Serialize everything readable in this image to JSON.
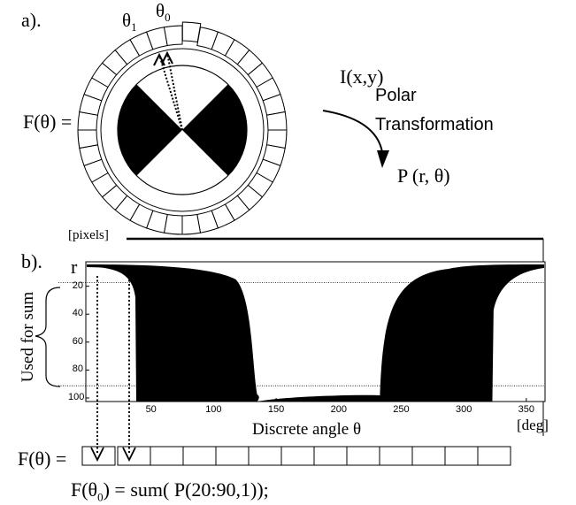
{
  "panel_a": {
    "label": "a).",
    "theta1": "θ",
    "theta1_sub": "1",
    "theta0": "θ",
    "theta0_sub": "0",
    "f_theta": "F(θ) =",
    "ring_segments": 36,
    "input_image": "I(x,y)",
    "transform_line1": "Polar",
    "transform_line2": "Transformation",
    "output_image": "P (r, θ)"
  },
  "panel_b": {
    "label": "b).",
    "pixels_unit": "[pixels]",
    "r_label": "r",
    "used_for_sum": "Used for sum",
    "y_ticks": [
      "20",
      "40",
      "60",
      "80",
      "100"
    ],
    "x_ticks": [
      "50",
      "100",
      "150",
      "200",
      "250",
      "300",
      "350"
    ],
    "x_label": "Discrete angle θ",
    "deg_unit": "[deg]",
    "f_theta": "F(θ) =",
    "bottom_cells": 13,
    "formula_prefix": "F(θ",
    "formula_sub": "0",
    "formula_suffix": ") = sum( P(20:90,1));"
  },
  "chart_data": {
    "type": "area",
    "x_label": "Discrete angle θ",
    "x_unit": "[deg]",
    "y_label": "r",
    "y_unit": "[pixels]",
    "x_range": [
      0,
      360
    ],
    "y_range": [
      0,
      100
    ],
    "y_inverted": true,
    "sum_band": [
      20,
      90
    ],
    "description_points": [
      {
        "x": 0,
        "y": 8
      },
      {
        "x": 25,
        "y": 8
      },
      {
        "x": 40,
        "y": 25
      },
      {
        "x": 45,
        "y": 100
      },
      {
        "x": 132,
        "y": 100
      },
      {
        "x": 135,
        "y": 98
      },
      {
        "x": 230,
        "y": 95
      },
      {
        "x": 232,
        "y": 100
      },
      {
        "x": 320,
        "y": 100
      },
      {
        "x": 325,
        "y": 30
      },
      {
        "x": 340,
        "y": 14
      },
      {
        "x": 360,
        "y": 8
      }
    ]
  },
  "colors": {
    "ink": "#000000",
    "paper": "#ffffff",
    "grid": "#888888"
  }
}
